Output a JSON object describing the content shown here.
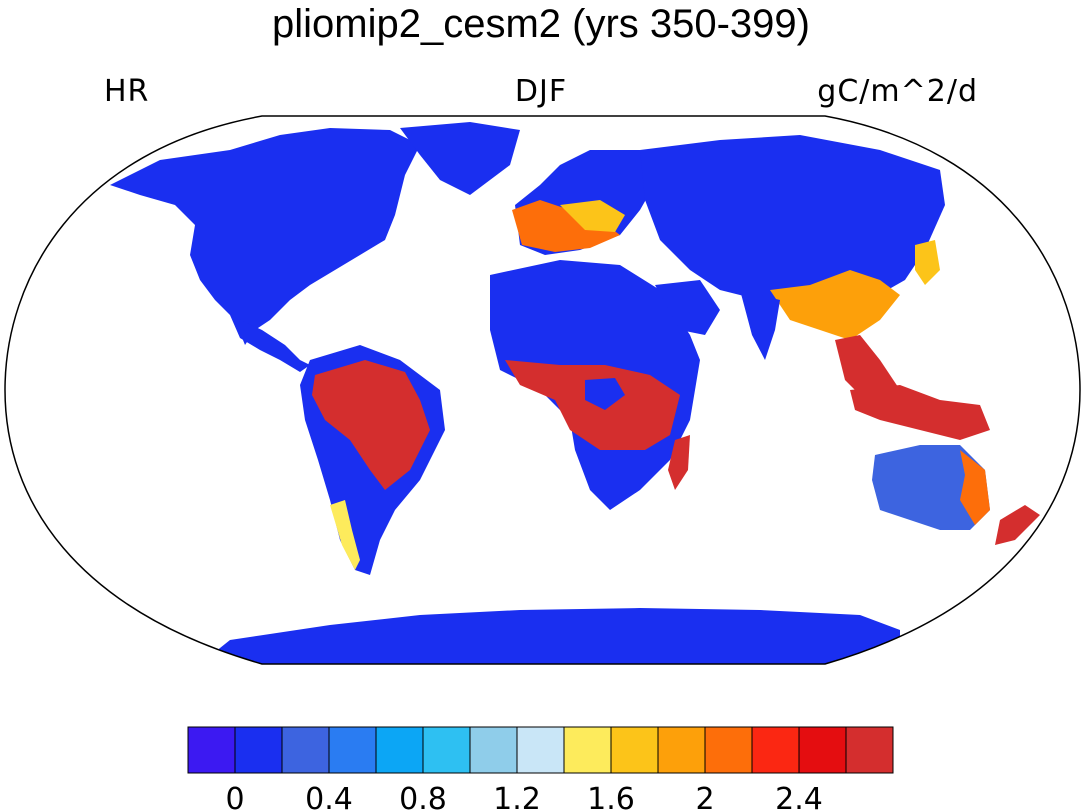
{
  "title": "pliomip2_cesm2 (yrs 350-399)",
  "subtitle_left": "HR",
  "subtitle_center": "DJF",
  "subtitle_right": "gC/m^2/d",
  "colorbar": {
    "colors": [
      "#3c19f2",
      "#1a2ff0",
      "#3d64e0",
      "#2a7cf2",
      "#0ca6f5",
      "#2ec0f2",
      "#8fcdea",
      "#c9e6f7",
      "#fdeb5c",
      "#fcc419",
      "#fda00a",
      "#fd6e0a",
      "#fb2712",
      "#e40d10",
      "#d42e2e"
    ],
    "tick_labels": [
      "0",
      "0.4",
      "0.8",
      "1.2",
      "1.6",
      "2",
      "2.4"
    ],
    "tick_positions": [
      1,
      3,
      5,
      7,
      9,
      11,
      13
    ]
  },
  "map": {
    "projection": "Robinson",
    "variable": "HR",
    "season": "DJF",
    "units": "gC/m^2/d",
    "ocean_color": "#ffffff",
    "land_base_color": "#1a2ff0"
  }
}
